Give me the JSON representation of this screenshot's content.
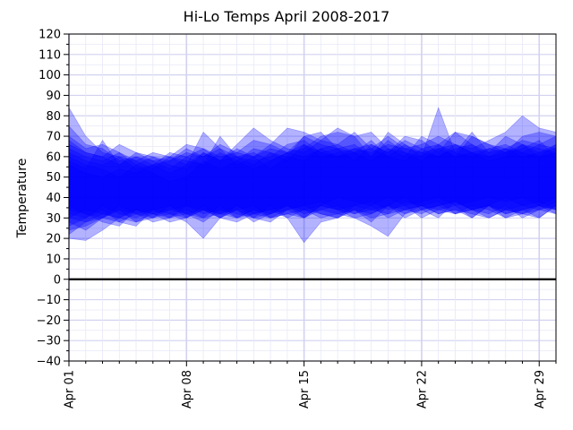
{
  "chart_data": {
    "type": "area",
    "title": "Hi-Lo Temps April 2008-2017",
    "xlabel": "",
    "ylabel": "Temperature",
    "ylim": [
      -40,
      120
    ],
    "xlim": [
      "2017-04-01",
      "2017-04-30"
    ],
    "y_ticks": [
      -40,
      -30,
      -20,
      -10,
      0,
      10,
      20,
      30,
      40,
      50,
      60,
      70,
      80,
      90,
      100,
      110,
      120
    ],
    "y_tick_labels": [
      "−40",
      "−30",
      "−20",
      "−10",
      "0",
      "10",
      "20",
      "30",
      "40",
      "50",
      "60",
      "70",
      "80",
      "90",
      "100",
      "110",
      "120"
    ],
    "x_ticks": [
      "2017-04-01",
      "2017-04-08",
      "2017-04-15",
      "2017-04-22",
      "2017-04-29"
    ],
    "x_tick_labels": [
      "Apr 01",
      "Apr 08",
      "Apr 15",
      "Apr 22",
      "Apr 29"
    ],
    "grid": true,
    "zero_line": true,
    "fill_color": "#0000ff",
    "zero_line_color": "#000000",
    "x": [
      "2017-04-01",
      "2017-04-02",
      "2017-04-03",
      "2017-04-04",
      "2017-04-05",
      "2017-04-06",
      "2017-04-07",
      "2017-04-08",
      "2017-04-09",
      "2017-04-10",
      "2017-04-11",
      "2017-04-12",
      "2017-04-13",
      "2017-04-14",
      "2017-04-15",
      "2017-04-16",
      "2017-04-17",
      "2017-04-18",
      "2017-04-19",
      "2017-04-20",
      "2017-04-21",
      "2017-04-22",
      "2017-04-23",
      "2017-04-24",
      "2017-04-25",
      "2017-04-26",
      "2017-04-27",
      "2017-04-28",
      "2017-04-29",
      "2017-04-30"
    ],
    "series": [
      {
        "high": [
          84,
          70,
          62,
          60,
          58,
          62,
          60,
          58,
          56,
          70,
          60,
          62,
          58,
          62,
          64,
          70,
          72,
          70,
          60,
          72,
          66,
          60,
          84,
          62,
          72,
          62,
          70,
          66,
          60,
          62
        ],
        "low": [
          20,
          19,
          24,
          30,
          28,
          30,
          34,
          32,
          30,
          36,
          30,
          34,
          30,
          32,
          34,
          36,
          40,
          38,
          36,
          40,
          36,
          38,
          40,
          36,
          38,
          40,
          38,
          40,
          36,
          40
        ]
      },
      {
        "high": [
          75,
          66,
          64,
          58,
          60,
          56,
          58,
          62,
          60,
          64,
          56,
          60,
          54,
          60,
          70,
          72,
          64,
          58,
          66,
          62,
          70,
          68,
          62,
          72,
          66,
          60,
          62,
          70,
          72,
          70
        ],
        "low": [
          28,
          24,
          30,
          34,
          32,
          28,
          30,
          36,
          34,
          30,
          28,
          32,
          34,
          30,
          18,
          28,
          30,
          34,
          28,
          36,
          40,
          34,
          30,
          38,
          34,
          36,
          40,
          36,
          38,
          34
        ]
      },
      {
        "high": [
          60,
          56,
          54,
          50,
          56,
          52,
          48,
          50,
          58,
          54,
          58,
          54,
          58,
          62,
          70,
          66,
          64,
          62,
          68,
          60,
          58,
          64,
          66,
          60,
          62,
          58,
          60,
          66,
          62,
          64
        ],
        "low": [
          36,
          32,
          28,
          26,
          34,
          30,
          32,
          28,
          20,
          30,
          34,
          28,
          32,
          36,
          30,
          34,
          32,
          30,
          26,
          21,
          32,
          36,
          38,
          32,
          34,
          30,
          34,
          32,
          30,
          36
        ]
      },
      {
        "high": [
          66,
          62,
          60,
          66,
          62,
          60,
          56,
          54,
          62,
          58,
          66,
          74,
          68,
          64,
          62,
          68,
          66,
          72,
          64,
          70,
          64,
          66,
          70,
          66,
          64,
          68,
          72,
          80,
          74,
          72
        ],
        "low": [
          32,
          30,
          36,
          32,
          30,
          34,
          36,
          30,
          34,
          32,
          36,
          30,
          28,
          34,
          36,
          38,
          34,
          36,
          38,
          34,
          36,
          30,
          34,
          36,
          30,
          36,
          34,
          36,
          34,
          38
        ]
      },
      {
        "high": [
          70,
          64,
          66,
          62,
          58,
          54,
          60,
          66,
          64,
          60,
          62,
          68,
          66,
          74,
          72,
          68,
          74,
          70,
          72,
          64,
          60,
          70,
          66,
          72,
          70,
          66,
          64,
          68,
          66,
          70
        ],
        "low": [
          24,
          26,
          30,
          28,
          26,
          34,
          30,
          32,
          28,
          34,
          32,
          30,
          36,
          30,
          34,
          32,
          30,
          36,
          34,
          32,
          38,
          36,
          34,
          32,
          36,
          34,
          30,
          34,
          36,
          34
        ]
      },
      {
        "high": [
          62,
          58,
          56,
          60,
          54,
          56,
          52,
          56,
          72,
          64,
          60,
          58,
          60,
          66,
          68,
          62,
          64,
          66,
          60,
          68,
          62,
          58,
          64,
          60,
          70,
          66,
          62,
          64,
          68,
          60
        ],
        "low": [
          30,
          28,
          32,
          30,
          34,
          32,
          28,
          30,
          36,
          30,
          34,
          36,
          30,
          32,
          30,
          36,
          34,
          30,
          32,
          36,
          34,
          32,
          36,
          38,
          34,
          32,
          36,
          30,
          34,
          32
        ]
      },
      {
        "high": [
          58,
          54,
          68,
          56,
          60,
          58,
          54,
          60,
          56,
          62,
          58,
          64,
          62,
          58,
          66,
          60,
          62,
          64,
          66,
          62,
          68,
          64,
          60,
          66,
          62,
          64,
          66,
          62,
          60,
          66
        ],
        "low": [
          34,
          32,
          30,
          36,
          32,
          34,
          32,
          30,
          34,
          32,
          30,
          34,
          32,
          36,
          34,
          30,
          32,
          34,
          30,
          32,
          34,
          36,
          32,
          34,
          32,
          30,
          34,
          32,
          36,
          34
        ]
      },
      {
        "high": [
          56,
          52,
          50,
          54,
          52,
          56,
          62,
          60,
          64,
          58,
          60,
          56,
          62,
          60,
          58,
          64,
          60,
          62,
          58,
          64,
          62,
          60,
          66,
          62,
          60,
          64,
          62,
          66,
          64,
          62
        ],
        "low": [
          30,
          34,
          32,
          30,
          34,
          32,
          34,
          36,
          32,
          34,
          30,
          32,
          34,
          36,
          32,
          34,
          36,
          32,
          34,
          36,
          32,
          34,
          36,
          38,
          34,
          36,
          32,
          34,
          36,
          32
        ]
      },
      {
        "high": [
          64,
          60,
          58,
          62,
          56,
          60,
          58,
          64,
          60,
          66,
          62,
          60,
          64,
          62,
          66,
          62,
          60,
          64,
          62,
          66,
          64,
          62,
          60,
          64,
          66,
          62,
          64,
          60,
          62,
          66
        ],
        "low": [
          26,
          30,
          34,
          28,
          32,
          30,
          36,
          32,
          34,
          30,
          36,
          32,
          30,
          34,
          30,
          36,
          34,
          32,
          36,
          30,
          34,
          36,
          32,
          34,
          30,
          36,
          32,
          34,
          30,
          36
        ]
      },
      {
        "high": [
          68,
          62,
          60,
          56,
          62,
          58,
          60,
          56,
          62,
          58,
          64,
          60,
          66,
          62,
          60,
          64,
          66,
          62,
          64,
          60,
          66,
          62,
          64,
          66,
          62,
          60,
          64,
          62,
          66,
          64
        ],
        "low": [
          22,
          28,
          30,
          34,
          28,
          32,
          30,
          34,
          30,
          32,
          34,
          30,
          32,
          34,
          36,
          32,
          30,
          34,
          32,
          36,
          30,
          34,
          36,
          32,
          34,
          36,
          30,
          32,
          34,
          36
        ]
      }
    ]
  }
}
